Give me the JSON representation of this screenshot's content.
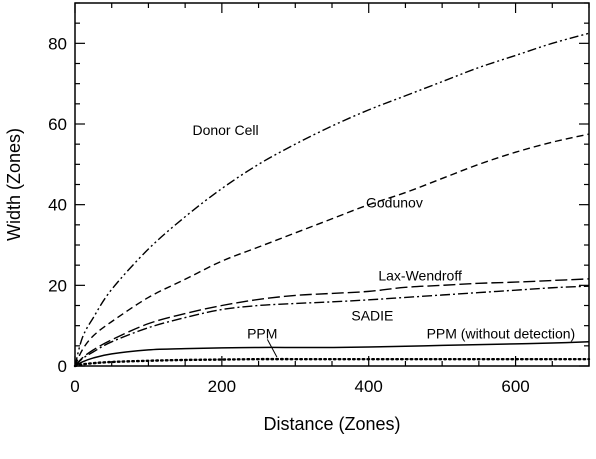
{
  "chart_data": {
    "type": "line",
    "title": "",
    "xlabel": "Distance (Zones)",
    "ylabel": "Width (Zones)",
    "xlim": [
      0,
      700
    ],
    "ylim": [
      0,
      90
    ],
    "xticks": [
      0,
      200,
      400,
      600
    ],
    "yticks": [
      0,
      20,
      40,
      60,
      80
    ],
    "grid": false,
    "legend": "none",
    "series": [
      {
        "name": "Donor Cell",
        "style": "dash-dot-dot",
        "x": [
          0,
          10,
          25,
          50,
          100,
          150,
          200,
          250,
          300,
          350,
          400,
          450,
          500,
          550,
          600,
          650,
          700
        ],
        "y": [
          0,
          7,
          12,
          19,
          29,
          37,
          44,
          50,
          55,
          59.5,
          63.5,
          67,
          70.5,
          74,
          77,
          80,
          82.5
        ]
      },
      {
        "name": "Godunov",
        "style": "dashed",
        "x": [
          0,
          10,
          25,
          50,
          100,
          150,
          200,
          250,
          300,
          350,
          400,
          450,
          500,
          550,
          600,
          650,
          700
        ],
        "y": [
          0,
          4,
          7.5,
          11,
          17,
          21.5,
          26,
          29.5,
          33,
          36.5,
          40,
          43,
          46.5,
          50,
          53,
          55.5,
          57.5
        ]
      },
      {
        "name": "Lax-Wendroff",
        "style": "long-dash",
        "x": [
          0,
          10,
          25,
          50,
          100,
          150,
          200,
          250,
          300,
          350,
          400,
          450,
          500,
          550,
          600,
          650,
          700
        ],
        "y": [
          0,
          2,
          4,
          6.5,
          10.5,
          13,
          15,
          16.5,
          17.5,
          18,
          18.5,
          19.5,
          20,
          20.5,
          20.8,
          21.2,
          21.6
        ]
      },
      {
        "name": "SADIE",
        "style": "dash-dot",
        "x": [
          0,
          10,
          25,
          50,
          100,
          150,
          200,
          250,
          300,
          350,
          400,
          450,
          500,
          550,
          600,
          650,
          700
        ],
        "y": [
          0,
          1.8,
          3.5,
          6,
          9.5,
          12,
          14,
          15,
          15.5,
          15.9,
          16.4,
          17,
          17.6,
          18.2,
          18.8,
          19.4,
          19.8
        ]
      },
      {
        "name": "PPM",
        "style": "solid",
        "x": [
          0,
          10,
          25,
          50,
          100,
          150,
          200,
          250,
          300,
          350,
          400,
          450,
          500,
          550,
          600,
          650,
          700
        ],
        "y": [
          0,
          1,
          2,
          3,
          4,
          4.3,
          4.5,
          4.6,
          4.6,
          4.6,
          4.7,
          4.9,
          5.1,
          5.3,
          5.5,
          5.7,
          6
        ]
      },
      {
        "name": "PPM (without detection)",
        "style": "dotted",
        "x": [
          0,
          10,
          25,
          50,
          100,
          150,
          200,
          250,
          300,
          350,
          400,
          450,
          500,
          550,
          600,
          650,
          700
        ],
        "y": [
          0,
          0.4,
          0.7,
          1,
          1.3,
          1.5,
          1.6,
          1.7,
          1.7,
          1.7,
          1.7,
          1.7,
          1.7,
          1.7,
          1.7,
          1.7,
          1.7
        ]
      }
    ],
    "annotations": [
      {
        "text": "Donor Cell",
        "x": 205,
        "y": 58.5
      },
      {
        "text": "Godunov",
        "x": 435,
        "y": 40.5
      },
      {
        "text": "Lax-Wendroff",
        "x": 470,
        "y": 22.5
      },
      {
        "text": "SADIE",
        "x": 405,
        "y": 12.5
      },
      {
        "text": "PPM",
        "x": 255,
        "y": 8
      },
      {
        "text": "PPM (without detection)",
        "x": 580,
        "y": 8
      }
    ]
  }
}
